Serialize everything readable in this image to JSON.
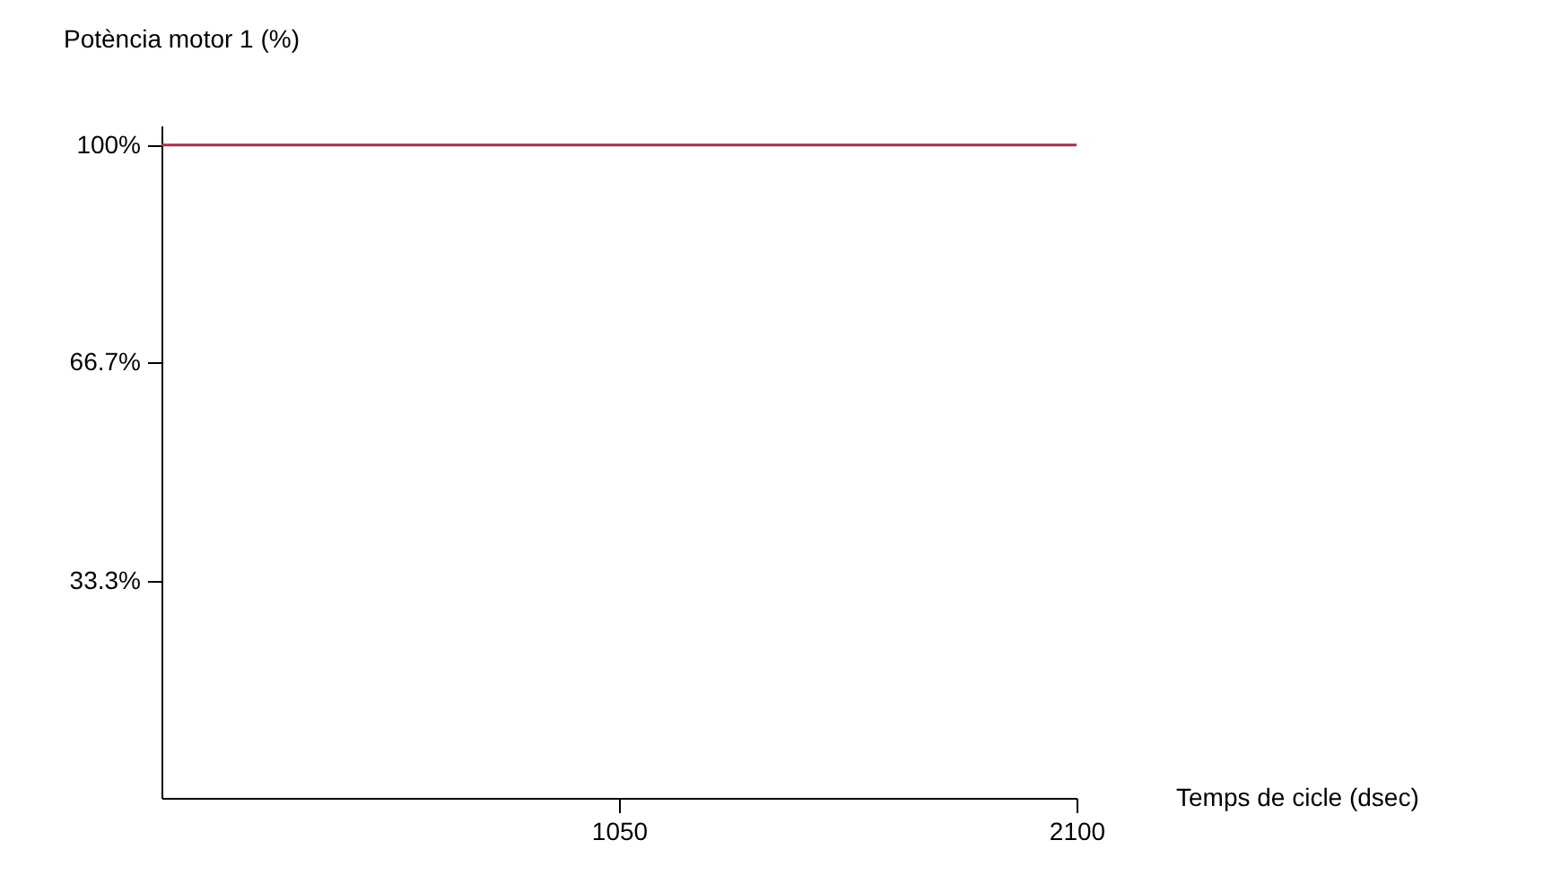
{
  "chart_data": {
    "type": "line",
    "xlabel": "Temps de cicle (dsec)",
    "ylabel": "Potència motor 1 (%)",
    "x": [
      0,
      2100
    ],
    "series": [
      {
        "color": "#a3304b",
        "values": [
          100,
          100
        ]
      }
    ],
    "xlim": [
      0,
      2100
    ],
    "xticks": [
      1050,
      2100
    ],
    "ylim": [
      0,
      103
    ],
    "yticks": [
      {
        "value": 33.3,
        "label": "33.3%"
      },
      {
        "value": 66.7,
        "label": "66.7%"
      },
      {
        "value": 100,
        "label": "100%"
      }
    ],
    "grid": false
  }
}
